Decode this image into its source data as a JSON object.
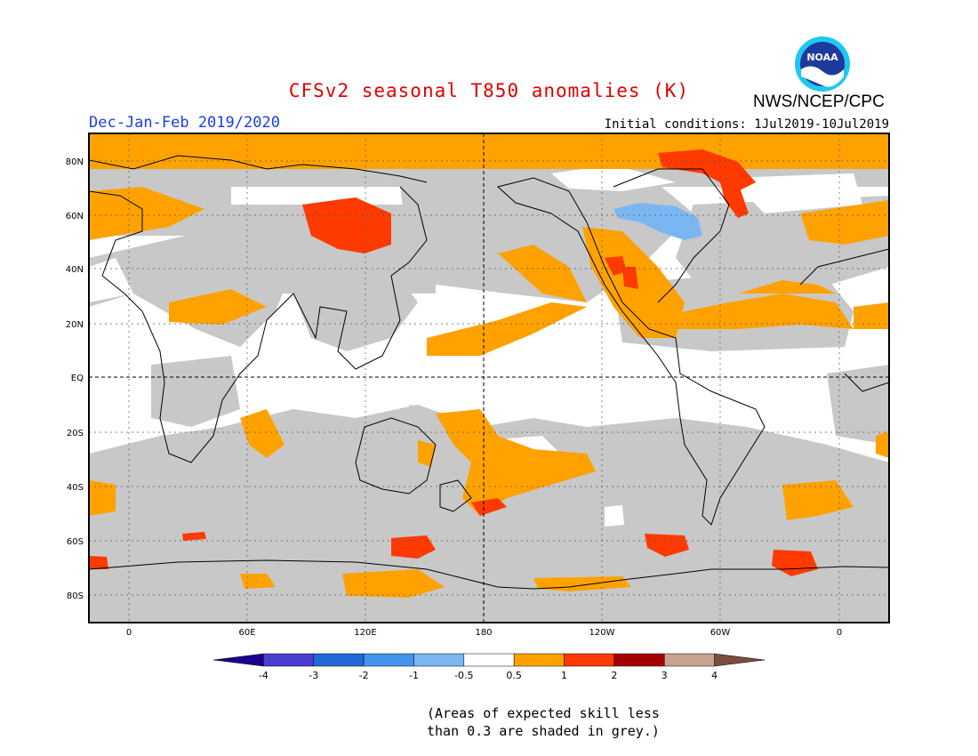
{
  "title": "CFSv2 seasonal T850 anomalies (K)",
  "agency": "NWS/NCEP/CPC",
  "logo_text": "NOAA",
  "season": "Dec-Jan-Feb 2019/2020",
  "initial_conditions": "Initial conditions: 1Jul2019-10Jul2019",
  "lat_labels": [
    "80N",
    "60N",
    "40N",
    "20N",
    "EQ",
    "20S",
    "40S",
    "60S",
    "80S"
  ],
  "lon_labels": [
    "0",
    "60E",
    "120E",
    "180",
    "120W",
    "60W",
    "0"
  ],
  "colorbar": {
    "labels": [
      "-4",
      "-3",
      "-2",
      "-1",
      "-0.5",
      "0.5",
      "1",
      "2",
      "3",
      "4"
    ],
    "colors": [
      "#1a008c",
      "#4a3fd0",
      "#1f6ad6",
      "#4295ea",
      "#7ab6f2",
      "#ffffff",
      "#ffa200",
      "#ff3a00",
      "#a50000",
      "#c8a291",
      "#7a4e3e"
    ]
  },
  "note_lines": [
    "(Areas of expected skill less",
    "than 0.3 are shaded in grey.)"
  ],
  "colors": {
    "grey": "#c8c8c8",
    "orange": "#ffa200",
    "red": "#ff3a00",
    "lightblue": "#7ab6f2"
  }
}
